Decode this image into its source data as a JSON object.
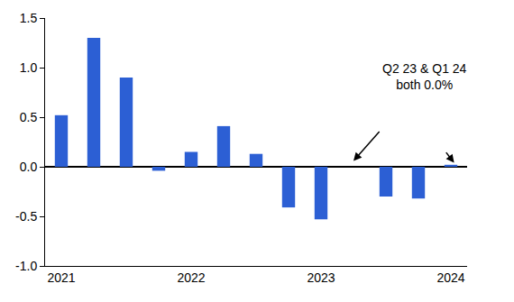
{
  "chart_data": {
    "type": "bar",
    "categories": [
      "2021",
      null,
      null,
      null,
      "2022",
      null,
      null,
      null,
      "2023",
      null,
      null,
      null,
      "2024"
    ],
    "values": [
      0.52,
      1.3,
      0.9,
      -0.04,
      0.15,
      0.41,
      0.13,
      -0.41,
      -0.53,
      0.0,
      -0.3,
      -0.32,
      0.02
    ],
    "color": "#2c5fd4",
    "ylim": [
      -1,
      1.5
    ],
    "yticks": [
      {
        "value": -1,
        "label": "-1.0"
      },
      -0.5,
      {
        "value": 0,
        "label": "0.0"
      },
      0.5,
      {
        "value": 1,
        "label": "1.0"
      },
      1.5
    ],
    "grid": false,
    "annotations": [
      {
        "text": [
          "Q2 23 & Q1 24",
          "both 0.0%"
        ]
      }
    ]
  }
}
